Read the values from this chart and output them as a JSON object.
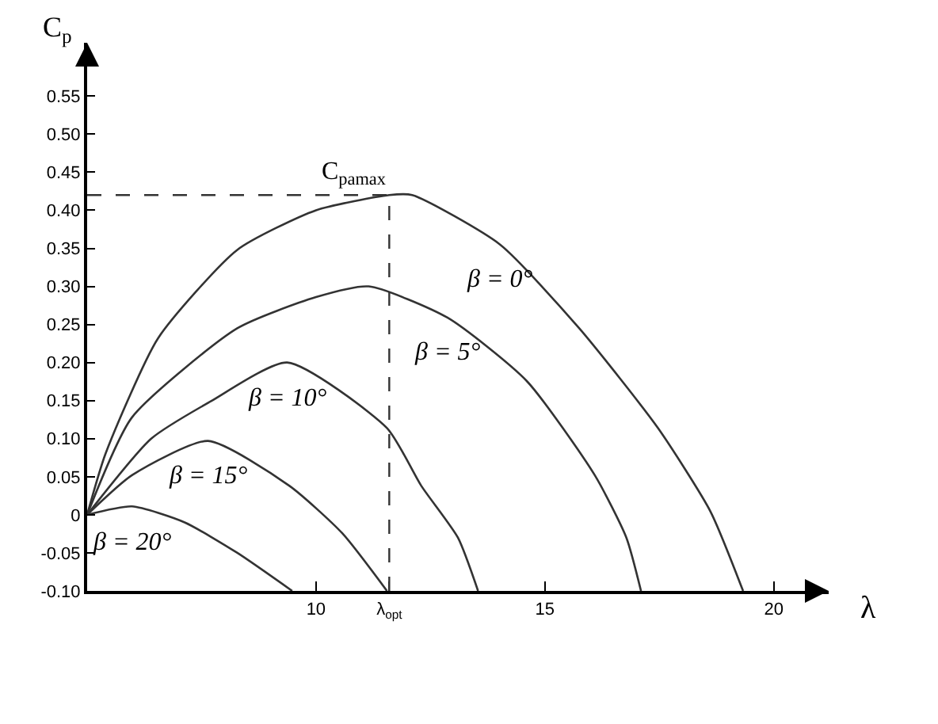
{
  "chart_data": {
    "type": "line",
    "xlabel": "λ",
    "ylabel": "C$_{p}$",
    "xlim": [
      5,
      21.2
    ],
    "ylim": [
      -0.1,
      0.62
    ],
    "xticks": [
      10,
      {
        "value": 11.6,
        "label": "λ$_{opt}$"
      },
      15,
      20
    ],
    "yticks": [
      {
        "value": -0.1,
        "label": "-0.10"
      },
      {
        "value": -0.05,
        "label": "-0.05"
      },
      0,
      {
        "value": 0.05,
        "label": "0.05"
      },
      {
        "value": 0.1,
        "label": "0.10"
      },
      {
        "value": 0.15,
        "label": "0.15"
      },
      {
        "value": 0.2,
        "label": "0.20"
      },
      {
        "value": 0.25,
        "label": "0.25"
      },
      {
        "value": 0.3,
        "label": "0.30"
      },
      {
        "value": 0.35,
        "label": "0.35"
      },
      {
        "value": 0.4,
        "label": "0.40"
      },
      {
        "value": 0.45,
        "label": "0.45"
      },
      {
        "value": 0.5,
        "label": "0.50"
      },
      {
        "value": 0.55,
        "label": "0.55"
      }
    ],
    "marker": "none",
    "line_style": "solid",
    "series": [
      {
        "color": "#333333",
        "x": [
          5,
          5.4,
          6.55,
          8.28,
          10,
          11.6,
          12.1,
          14.02,
          15.75,
          17.47,
          18.62,
          19.33
        ],
        "values": [
          0,
          0.08,
          0.232,
          0.348,
          0.4,
          0.42,
          0.42,
          0.355,
          0.245,
          0.114,
          0.004,
          -0.1
        ]
      },
      {
        "color": "#333333",
        "x": [
          5,
          5.98,
          8.28,
          10,
          11.15,
          12.87,
          14.6,
          16.09,
          16.78,
          17.1
        ],
        "values": [
          0,
          0.128,
          0.245,
          0.286,
          0.3,
          0.259,
          0.176,
          0.052,
          -0.03,
          -0.1
        ]
      },
      {
        "color": "#333333",
        "x": [
          5,
          6.4,
          7.7,
          9.37,
          11.55,
          12.3,
          13.1,
          13.54
        ],
        "values": [
          0,
          0.1,
          0.149,
          0.2,
          0.114,
          0.038,
          -0.03,
          -0.1
        ]
      },
      {
        "color": "#333333",
        "x": [
          5,
          5.98,
          7.64,
          9.42,
          10.57,
          11.55
        ],
        "values": [
          0,
          0.052,
          0.097,
          0.038,
          -0.024,
          -0.1
        ]
      },
      {
        "color": "#333333",
        "x": [
          5,
          5.98,
          7.13,
          8.28,
          9.48
        ],
        "values": [
          0,
          0.011,
          -0.01,
          -0.05,
          -0.1
        ]
      }
    ],
    "ref_lines": [
      {
        "axis": "y",
        "value": 0.42,
        "label": "C$_{pamax}$",
        "line_style": "dashed",
        "color": "#333333"
      },
      {
        "axis": "x",
        "value": 11.6,
        "label": null,
        "line_style": "dashed",
        "color": "#333333"
      }
    ],
    "annotations": [
      {
        "text": "β = 0°",
        "x": 14.02,
        "y": 0.355
      },
      {
        "text": "β = 5°",
        "x": 12.87,
        "y": 0.259
      },
      {
        "text": "β = 10°",
        "x": 9.37,
        "y": 0.2
      },
      {
        "text": "β = 15°",
        "x": 7.64,
        "y": 0.097
      },
      {
        "text": "β = 20°",
        "x": 5.98,
        "y": 0.011
      }
    ]
  }
}
